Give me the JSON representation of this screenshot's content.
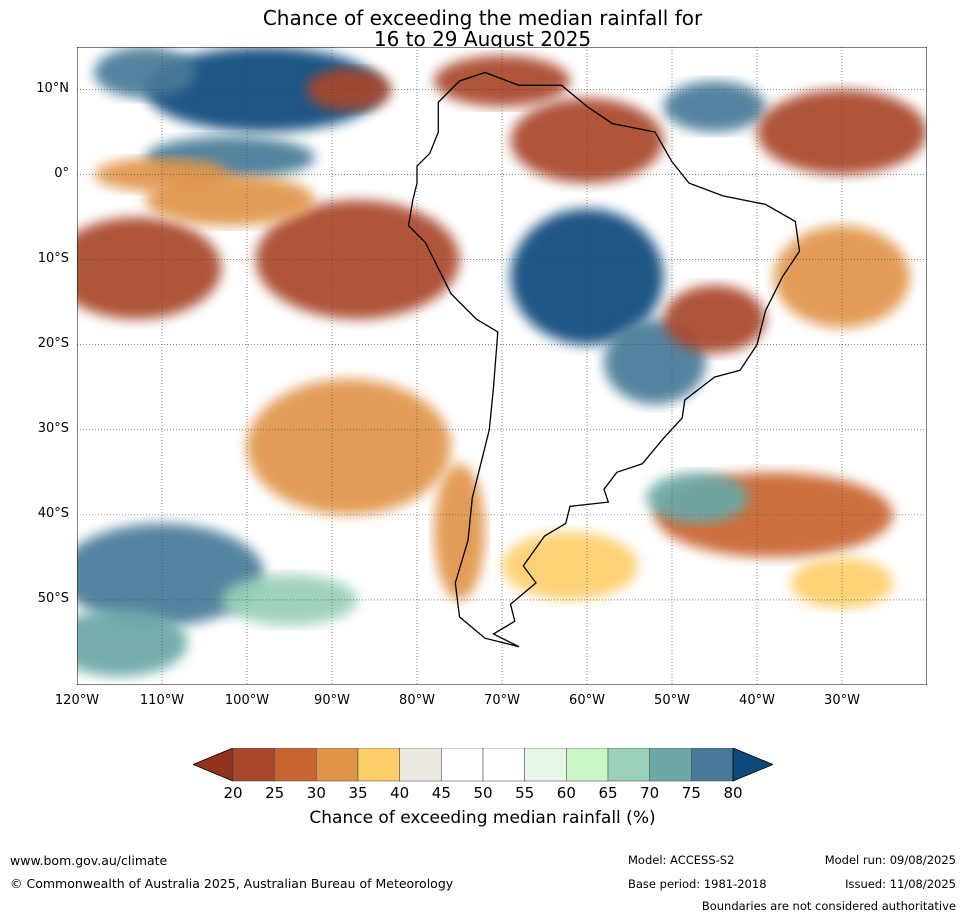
{
  "title": {
    "line1": "Chance of exceeding the median rainfall for",
    "line2": "16 to 29 August 2025"
  },
  "map": {
    "lon_range": [
      -120,
      -20
    ],
    "lat_range": [
      -60,
      15
    ],
    "lat_labels": [
      "10°N",
      "0°",
      "10°S",
      "20°S",
      "30°S",
      "40°S",
      "50°S"
    ],
    "lat_values": [
      10,
      0,
      -10,
      -20,
      -30,
      -40,
      -50
    ],
    "lon_labels": [
      "120°W",
      "110°W",
      "100°W",
      "90°W",
      "80°W",
      "70°W",
      "60°W",
      "50°W",
      "40°W",
      "30°W"
    ],
    "lon_values": [
      -120,
      -110,
      -100,
      -90,
      -80,
      -70,
      -60,
      -50,
      -40,
      -30
    ],
    "regions": [
      {
        "lon": -98,
        "lat": 10,
        "rx": 14,
        "ry": 5,
        "value": 80
      },
      {
        "lon": -102,
        "lat": 2,
        "rx": 10,
        "ry": 2.5,
        "value": 75
      },
      {
        "lon": -112,
        "lat": 12,
        "rx": 6,
        "ry": 3,
        "value": 75
      },
      {
        "lon": -88,
        "lat": 10,
        "rx": 5,
        "ry": 2.5,
        "value": 20
      },
      {
        "lon": -70,
        "lat": 11,
        "rx": 8,
        "ry": 3,
        "value": 20
      },
      {
        "lon": -60,
        "lat": 4,
        "rx": 9,
        "ry": 5,
        "value": 20
      },
      {
        "lon": -45,
        "lat": 8,
        "rx": 6,
        "ry": 3,
        "value": 75
      },
      {
        "lon": -30,
        "lat": 5,
        "rx": 10,
        "ry": 5,
        "value": 20
      },
      {
        "lon": -113,
        "lat": -11,
        "rx": 10,
        "ry": 6,
        "value": 20
      },
      {
        "lon": -87,
        "lat": -10,
        "rx": 12,
        "ry": 7,
        "value": 20
      },
      {
        "lon": -102,
        "lat": -3,
        "rx": 10,
        "ry": 3,
        "value": 30
      },
      {
        "lon": -110,
        "lat": 0,
        "rx": 8,
        "ry": 2,
        "value": 30
      },
      {
        "lon": -60,
        "lat": -12,
        "rx": 9,
        "ry": 8,
        "value": 80
      },
      {
        "lon": -52,
        "lat": -22,
        "rx": 6,
        "ry": 5,
        "value": 75
      },
      {
        "lon": -45,
        "lat": -17,
        "rx": 6,
        "ry": 4,
        "value": 20
      },
      {
        "lon": -30,
        "lat": -12,
        "rx": 8,
        "ry": 6,
        "value": 30
      },
      {
        "lon": -88,
        "lat": -32,
        "rx": 12,
        "ry": 8,
        "value": 30
      },
      {
        "lon": -75,
        "lat": -42,
        "rx": 3,
        "ry": 8,
        "value": 30
      },
      {
        "lon": -38,
        "lat": -40,
        "rx": 14,
        "ry": 5,
        "value": 25
      },
      {
        "lon": -62,
        "lat": -46,
        "rx": 8,
        "ry": 4,
        "value": 35
      },
      {
        "lon": -47,
        "lat": -38,
        "rx": 6,
        "ry": 3,
        "value": 70
      },
      {
        "lon": -110,
        "lat": -47,
        "rx": 12,
        "ry": 6,
        "value": 75
      },
      {
        "lon": -115,
        "lat": -55,
        "rx": 8,
        "ry": 4,
        "value": 70
      },
      {
        "lon": -95,
        "lat": -50,
        "rx": 8,
        "ry": 3,
        "value": 65
      },
      {
        "lon": -30,
        "lat": -48,
        "rx": 6,
        "ry": 3,
        "value": 35
      }
    ],
    "coastline": [
      [
        -77.5,
        8.5
      ],
      [
        -75,
        11
      ],
      [
        -72,
        12
      ],
      [
        -68,
        10.5
      ],
      [
        -63,
        10.5
      ],
      [
        -60,
        8
      ],
      [
        -57,
        6
      ],
      [
        -52,
        5
      ],
      [
        -50,
        1.5
      ],
      [
        -48,
        -1
      ],
      [
        -44,
        -2.5
      ],
      [
        -39,
        -3.5
      ],
      [
        -35.5,
        -5.5
      ],
      [
        -35,
        -9
      ],
      [
        -37,
        -12
      ],
      [
        -39,
        -16
      ],
      [
        -40,
        -20
      ],
      [
        -42,
        -23
      ],
      [
        -45,
        -23.8
      ],
      [
        -48.5,
        -26.5
      ],
      [
        -48.8,
        -28.6
      ],
      [
        -51,
        -31
      ],
      [
        -53.5,
        -34
      ],
      [
        -56.5,
        -35
      ],
      [
        -58,
        -37
      ],
      [
        -57.5,
        -38.5
      ],
      [
        -62,
        -39
      ],
      [
        -62.5,
        -41
      ],
      [
        -65,
        -42.5
      ],
      [
        -67.5,
        -46
      ],
      [
        -66,
        -48
      ],
      [
        -69,
        -50.5
      ],
      [
        -68.5,
        -52.5
      ],
      [
        -71,
        -54
      ],
      [
        -68,
        -55.5
      ],
      [
        -72,
        -54.5
      ],
      [
        -75,
        -52
      ],
      [
        -75.5,
        -48
      ],
      [
        -74,
        -43
      ],
      [
        -73.5,
        -38
      ],
      [
        -72.5,
        -34
      ],
      [
        -71.5,
        -30
      ],
      [
        -71,
        -25
      ],
      [
        -70.5,
        -18.5
      ],
      [
        -73,
        -17
      ],
      [
        -76,
        -14
      ],
      [
        -79,
        -8
      ],
      [
        -81,
        -6
      ],
      [
        -80.5,
        -3
      ],
      [
        -80,
        -1
      ],
      [
        -80,
        1
      ],
      [
        -78.5,
        2.5
      ],
      [
        -77.5,
        5
      ],
      [
        -77.5,
        8.5
      ]
    ]
  },
  "colorbar": {
    "ticks": [
      "20",
      "25",
      "30",
      "35",
      "40",
      "45",
      "50",
      "55",
      "60",
      "65",
      "70",
      "75",
      "80"
    ],
    "colors": [
      "#a9472a",
      "#c8642f",
      "#e09448",
      "#fdce6a",
      "#ece9e3",
      "#ffffff",
      "#ffffff",
      "#e8f5e9",
      "#c8f6c8",
      "#99d0b7",
      "#6ba8a7",
      "#467a98"
    ],
    "under_color": "#93331f",
    "over_color": "#0d497b",
    "label": "Chance of exceeding median rainfall (%)"
  },
  "footer": {
    "website": "www.bom.gov.au/climate",
    "copyright": "© Commonwealth of Australia 2025, Australian Bureau of Meteorology",
    "model": "Model: ACCESS-S2",
    "base_period": "Base period: 1981-2018",
    "model_run": "Model run: 09/08/2025",
    "issued": "Issued: 11/08/2025",
    "disclaimer": "Boundaries are not considered authoritative"
  }
}
